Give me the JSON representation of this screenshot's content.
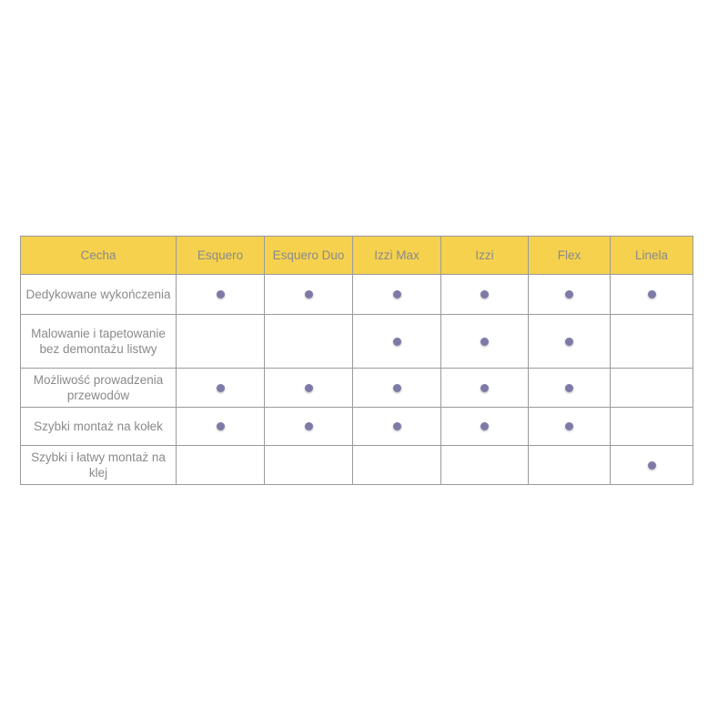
{
  "colors": {
    "header_bg": "#f5d14e",
    "dot": "#7e7aa8"
  },
  "headers": [
    "Cecha",
    "Esquero",
    "Esquero Duo",
    "Izzi Max",
    "Izzi",
    "Flex",
    "Linela"
  ],
  "rows": [
    {
      "feature": "Dedykowane wykończenia",
      "marks": [
        true,
        true,
        true,
        true,
        true,
        true
      ]
    },
    {
      "feature": "Malowanie i tapetowanie bez demontażu listwy",
      "marks": [
        false,
        false,
        true,
        true,
        true,
        false
      ]
    },
    {
      "feature": "Możliwość prowadzenia przewodów",
      "marks": [
        true,
        true,
        true,
        true,
        true,
        false
      ]
    },
    {
      "feature": "Szybki montaż na kołek",
      "marks": [
        true,
        true,
        true,
        true,
        true,
        false
      ]
    },
    {
      "feature": "Szybki i łatwy montaż na klej",
      "marks": [
        false,
        false,
        false,
        false,
        false,
        true
      ]
    }
  ]
}
